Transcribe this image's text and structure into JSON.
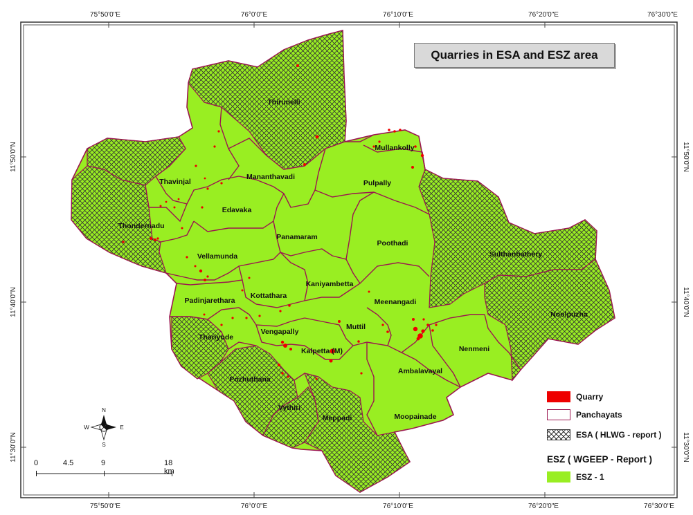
{
  "title": "Quarries in ESA and ESZ area",
  "graticule": {
    "top": [
      "75°50'0\"E",
      "76°0'0\"E",
      "76°10'0\"E",
      "76°20'0\"E",
      "76°30'0\"E"
    ],
    "bottom": [
      "75°50'0\"E",
      "76°0'0\"E",
      "76°10'0\"E",
      "76°20'0\"E",
      "76°30'0\"E"
    ],
    "left": [
      "11°50'0\"N",
      "11°40'0\"N",
      "11°30'0\"N"
    ],
    "right": [
      "11°50'0\"N",
      "11°40'0\"N",
      "11°30'0\"N"
    ]
  },
  "panchayats": [
    "Thirunelli",
    "Mullankolly",
    "Thavinjal",
    "Mananthavadi",
    "Pulpally",
    "Edavaka",
    "Thondernadu",
    "Panamaram",
    "Poothadi",
    "Vellamunda",
    "Sulthanbathery",
    "Kaniyambetta",
    "Padinjarethara",
    "Kottathara",
    "Meenangadi",
    "Noolpuzha",
    "Muttil",
    "Thariyode",
    "Vengapally",
    "Kalpetta (M)",
    "Nenmeni",
    "Ambalavayal",
    "Pozhuthana",
    "Vythiri",
    "Meppadi",
    "Moopainade"
  ],
  "legend": {
    "quarry": "Quarry",
    "panchayats": "Panchayats",
    "esa": "ESA ( HLWG - report )",
    "esz_heading": "ESZ ( WGEEP - Report )",
    "esz1": "ESZ - 1"
  },
  "north_arrow": {
    "n": "N",
    "s": "S",
    "e": "E",
    "w": "W"
  },
  "scale": {
    "labels": [
      "0",
      "4.5",
      "9",
      "18 km"
    ]
  },
  "colors": {
    "esz_fill": "#99ee22",
    "boundary": "#9b1550",
    "quarry": "#ee0000",
    "hatch": "#333333"
  }
}
